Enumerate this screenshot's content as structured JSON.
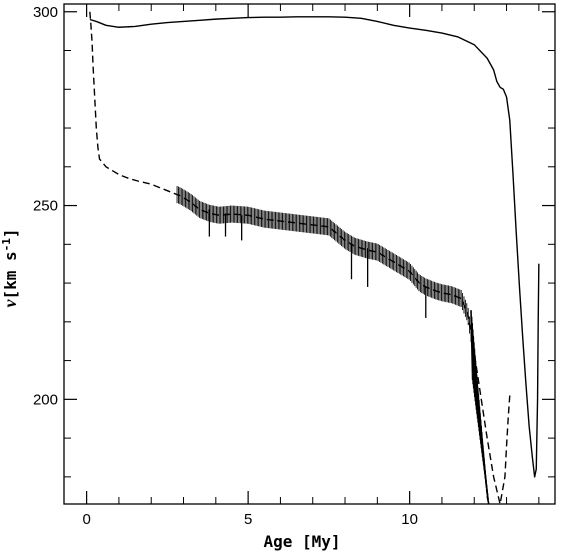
{
  "chart_data": {
    "type": "line",
    "title": "",
    "xlabel": "Age [My]",
    "ylabel": "v[km s⁻¹]",
    "ylabel_parts": {
      "italic": "v",
      "rest": "[km s",
      "sup": "-1",
      "close": "]"
    },
    "xlim": [
      -0.7,
      14.5
    ],
    "ylim": [
      173,
      302
    ],
    "xticks": [
      0,
      5,
      10
    ],
    "yticks": [
      200,
      250,
      300
    ],
    "xticks_minor": [
      1,
      2,
      3,
      4,
      6,
      7,
      8,
      9,
      11,
      12,
      13,
      14
    ],
    "yticks_minor": [
      180,
      190,
      210,
      220,
      230,
      240,
      260,
      270,
      280,
      290
    ],
    "grid": false,
    "series": [
      {
        "style": "solid",
        "x": [
          0.1,
          0.3,
          0.6,
          1.0,
          1.5,
          2.0,
          2.5,
          3.0,
          3.5,
          4.0,
          4.5,
          5.0,
          5.5,
          6.0,
          6.5,
          7.0,
          7.5,
          8.0,
          8.5,
          9.0,
          9.5,
          10.0,
          10.5,
          11.0,
          11.5,
          12.0,
          12.4,
          12.6,
          12.7,
          12.8,
          12.9,
          13.0,
          13.1,
          13.2,
          13.3,
          13.4,
          13.5,
          13.6,
          13.7,
          13.8,
          13.87,
          13.92,
          13.96,
          13.98,
          14.0
        ],
        "y": [
          298,
          297.5,
          296.5,
          296,
          296.2,
          296.8,
          297.2,
          297.5,
          297.8,
          298.1,
          298.3,
          298.5,
          298.6,
          298.6,
          298.7,
          298.7,
          298.7,
          298.6,
          298.3,
          297.5,
          296.5,
          295.8,
          295.2,
          294.5,
          293.5,
          291.5,
          288,
          285,
          282,
          280.5,
          280,
          278,
          272,
          258,
          243,
          229,
          216,
          204,
          193,
          185,
          180,
          182,
          200,
          220,
          235
        ]
      },
      {
        "style": "dashed",
        "x": [
          0.1,
          0.13,
          0.17,
          0.2,
          0.25,
          0.3,
          0.35,
          0.4,
          0.5,
          0.6,
          0.8,
          1.0,
          1.3,
          1.6,
          2.0,
          2.3,
          2.6,
          2.9,
          3.2,
          3.5,
          3.8,
          4.1,
          4.5,
          5.0,
          5.5,
          6.0,
          6.5,
          7.0,
          7.5,
          8.0,
          8.3,
          8.7,
          9.0,
          9.3,
          9.6,
          10.0,
          10.3,
          10.5,
          10.8,
          11.0,
          11.3,
          11.6,
          11.8,
          12.0,
          12.2,
          12.4,
          12.6,
          12.8,
          12.95,
          13.0,
          13.05,
          13.1
        ],
        "y": [
          300,
          297,
          292,
          286,
          278,
          270,
          265,
          262,
          261,
          260,
          259,
          258,
          257,
          256.3,
          255.5,
          254.5,
          253.5,
          252.5,
          251,
          249,
          248,
          247.5,
          247.8,
          247.5,
          246.5,
          246,
          245.5,
          245,
          244.5,
          241,
          239.5,
          238.5,
          238,
          236.5,
          235,
          233,
          230,
          229,
          228,
          227.5,
          227,
          226,
          222,
          212,
          201,
          190,
          180,
          173,
          180,
          188,
          195,
          201
        ]
      }
    ],
    "spikes": [
      {
        "x": 3.8,
        "y1": 249,
        "y2": 242
      },
      {
        "x": 4.3,
        "y1": 248,
        "y2": 242
      },
      {
        "x": 4.8,
        "y1": 247.5,
        "y2": 241
      },
      {
        "x": 8.2,
        "y1": 240,
        "y2": 231
      },
      {
        "x": 8.7,
        "y1": 239,
        "y2": 229
      },
      {
        "x": 10.5,
        "y1": 229,
        "y2": 221
      }
    ],
    "oscillation_band": {
      "x_start": 2.8,
      "x_end": 11.9,
      "amplitude": 2.2,
      "count": 210
    },
    "dense_band": {
      "x_start": 11.9,
      "x_end": 12.4,
      "y_top": [
        223,
        175
      ],
      "y_bottom": [
        205,
        173
      ],
      "count": 30
    }
  }
}
